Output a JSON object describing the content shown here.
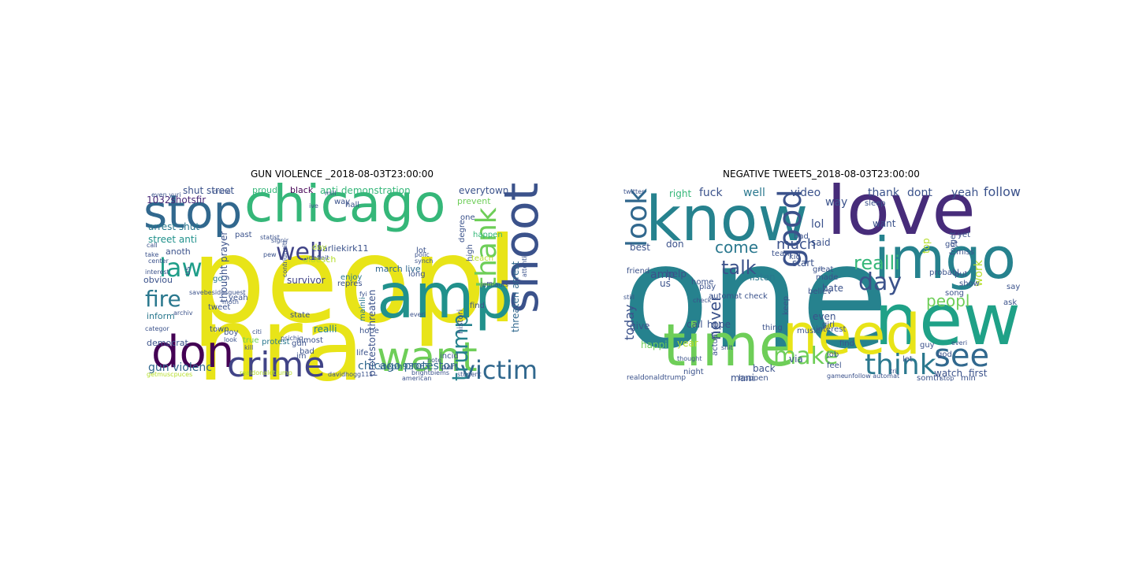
{
  "clouds": [
    {
      "title": "GUN VIOLENCE _2018-08-03T23:00:00",
      "words": [
        {
          "t": "peopl",
          "c": "#e8e418"
        },
        {
          "t": "nra",
          "c": "#e8e418"
        },
        {
          "t": "chicago",
          "c": "#35b779"
        },
        {
          "t": "stop",
          "c": "#31688e"
        },
        {
          "t": "amp",
          "c": "#21918c"
        },
        {
          "t": "shoot",
          "c": "#3b528b"
        },
        {
          "t": "don",
          "c": "#440154"
        },
        {
          "t": "want",
          "c": "#6ece58"
        },
        {
          "t": "crime",
          "c": "#414487"
        },
        {
          "t": "victim",
          "c": "#31688e"
        },
        {
          "t": "trump",
          "c": "#26828e"
        },
        {
          "t": "thank",
          "c": "#6ece58"
        },
        {
          "t": "law",
          "c": "#1f9e89"
        },
        {
          "t": "fire",
          "c": "#2a788e"
        },
        {
          "t": "well",
          "c": "#414487"
        },
        {
          "t": "gun violenc",
          "c": "#31688e"
        },
        {
          "t": "chicago protestor",
          "c": "#31688e"
        },
        {
          "t": "protestor threaten",
          "c": "#3b528b"
        },
        {
          "t": "threaten arrest",
          "c": "#31688e"
        },
        {
          "t": "shut street",
          "c": "#3b528b"
        },
        {
          "t": "arrest shut",
          "c": "#2a788e"
        },
        {
          "t": "street anti",
          "c": "#21918c"
        },
        {
          "t": "anti demonstration",
          "c": "#35b779"
        },
        {
          "t": "1032shotsfir",
          "c": "#482878"
        },
        {
          "t": "everytown",
          "c": "#3b528b"
        },
        {
          "t": "charliekirk11",
          "c": "#3b528b"
        },
        {
          "t": "march live",
          "c": "#31688e"
        },
        {
          "t": "thought prayer",
          "c": "#3b528b"
        },
        {
          "t": "survivor",
          "c": "#414487"
        },
        {
          "t": "dloesch",
          "c": "#b5de2b"
        },
        {
          "t": "steph93065",
          "c": "#31688e"
        },
        {
          "t": "democrat",
          "c": "#3b528b"
        },
        {
          "t": "inform",
          "c": "#2a788e"
        },
        {
          "t": "anoth",
          "c": "#3b528b"
        },
        {
          "t": "obviou",
          "c": "#3b528b"
        },
        {
          "t": "prevent",
          "c": "#6ece58"
        },
        {
          "t": "proud",
          "c": "#35b779"
        },
        {
          "t": "black",
          "c": "#440154"
        },
        {
          "t": "realli",
          "c": "#26828e"
        },
        {
          "t": "life",
          "c": "#3b528b"
        },
        {
          "t": "incid",
          "c": "#3b528b"
        },
        {
          "t": "hope",
          "c": "#3b528b"
        },
        {
          "t": "lot",
          "c": "#3b528b"
        },
        {
          "t": "enjoy",
          "c": "#2a788e"
        },
        {
          "t": "long",
          "c": "#3b528b"
        },
        {
          "t": "town",
          "c": "#3b528b"
        },
        {
          "t": "tweet",
          "c": "#3b528b"
        },
        {
          "t": "protest",
          "c": "#2a788e"
        },
        {
          "t": "gun",
          "c": "#3b528b"
        },
        {
          "t": "almost",
          "c": "#3b528b"
        },
        {
          "t": "state",
          "c": "#3b528b"
        },
        {
          "t": "boy",
          "c": "#3b528b"
        },
        {
          "t": "past",
          "c": "#3b528b"
        },
        {
          "t": "day",
          "c": "#b5de2b"
        },
        {
          "t": "go",
          "c": "#2a788e"
        },
        {
          "t": "find",
          "c": "#3b528b"
        },
        {
          "t": "part",
          "c": "#3b528b"
        },
        {
          "t": "teach",
          "c": "#b5de2b"
        },
        {
          "t": "happen",
          "c": "#35b779"
        },
        {
          "t": "one",
          "c": "#3b528b"
        },
        {
          "t": "hall",
          "c": "#3b528b"
        },
        {
          "t": "repres",
          "c": "#3b528b"
        },
        {
          "t": "yeah",
          "c": "#3b528b"
        },
        {
          "t": "true",
          "c": "#6ece58"
        },
        {
          "t": "bad",
          "c": "#3b528b"
        },
        {
          "t": "im",
          "c": "#3b528b"
        },
        {
          "t": "us",
          "c": "#3b528b"
        },
        {
          "t": "way",
          "c": "#3b528b"
        },
        {
          "t": "high",
          "c": "#3b528b"
        },
        {
          "t": "degre",
          "c": "#3b528b"
        },
        {
          "t": "mainli",
          "c": "#2a788e"
        },
        {
          "t": "histori",
          "c": "#3b528b"
        },
        {
          "t": "kill",
          "c": "#3b528b"
        },
        {
          "t": "citi",
          "c": "#3b528b"
        },
        {
          "t": "realdonaldtrump",
          "c": "#b5de2b"
        },
        {
          "t": "davidhogg111",
          "c": "#3b528b"
        },
        {
          "t": "brightbiems",
          "c": "#3b528b"
        },
        {
          "t": "student",
          "c": "#3b528b"
        },
        {
          "t": "american",
          "c": "#3b528b"
        },
        {
          "t": "getmuscpuces",
          "c": "#b5de2b"
        },
        {
          "t": "definit",
          "c": "#3b528b"
        },
        {
          "t": "contriutrsiti",
          "c": "#3b528b"
        },
        {
          "t": "synch",
          "c": "#3b528b"
        },
        {
          "t": "statist",
          "c": "#3b528b"
        },
        {
          "t": "pew",
          "c": "#3b528b"
        },
        {
          "t": "take",
          "c": "#3b528b"
        },
        {
          "t": "center",
          "c": "#3b528b"
        },
        {
          "t": "call",
          "c": "#3b528b"
        },
        {
          "t": "interest",
          "c": "#3b528b"
        },
        {
          "t": "even yuri",
          "c": "#3b528b"
        },
        {
          "t": "archiv",
          "c": "#3b528b"
        },
        {
          "t": "look",
          "c": "#3b528b"
        },
        {
          "t": "mill",
          "c": "#3b528b"
        },
        {
          "t": "ive",
          "c": "#3b528b"
        },
        {
          "t": "signir",
          "c": "#3b528b"
        },
        {
          "t": "polic",
          "c": "#3b528b"
        },
        {
          "t": "jeffbauts",
          "c": "#3b528b"
        },
        {
          "t": "everi",
          "c": "#3b528b"
        },
        {
          "t": "categor",
          "c": "#3b528b"
        },
        {
          "t": "fyi",
          "c": "#3b528b"
        },
        {
          "t": "note",
          "c": "#3b528b"
        },
        {
          "t": "moth",
          "c": "#3b528b"
        },
        {
          "t": "psichic",
          "c": "#3b528b"
        },
        {
          "t": "attenti",
          "c": "#3b528b"
        },
        {
          "t": "savebesidesguest",
          "c": "#3b528b"
        },
        {
          "t": "crime",
          "c": "#3b528b"
        },
        {
          "t": "thanks",
          "c": "#3b528b"
        }
      ]
    },
    {
      "title": "NEGATIVE TWEETS_2018-08-03T23:00:00",
      "words": [
        {
          "t": "one",
          "c": "#26828e"
        },
        {
          "t": "know",
          "c": "#26828e"
        },
        {
          "t": "love",
          "c": "#472c7a"
        },
        {
          "t": "imgo",
          "c": "#26828e"
        },
        {
          "t": "new",
          "c": "#1fa187"
        },
        {
          "t": "time",
          "c": "#6ece58"
        },
        {
          "t": "need",
          "c": "#e8e418"
        },
        {
          "t": "think",
          "c": "#2a788e"
        },
        {
          "t": "see",
          "c": "#31688e"
        },
        {
          "t": "make",
          "c": "#6ece58"
        },
        {
          "t": "good",
          "c": "#3b528b"
        },
        {
          "t": "look",
          "c": "#31688e"
        },
        {
          "t": "day",
          "c": "#3b528b"
        },
        {
          "t": "talk",
          "c": "#3b528b"
        },
        {
          "t": "come",
          "c": "#2a788e"
        },
        {
          "t": "never",
          "c": "#3b528b"
        },
        {
          "t": "realli",
          "c": "#35b779"
        },
        {
          "t": "much",
          "c": "#3b528b"
        },
        {
          "t": "peopl",
          "c": "#6ece58"
        },
        {
          "t": "amp",
          "c": "#3b528b"
        },
        {
          "t": "lol",
          "c": "#3b528b"
        },
        {
          "t": "fuck",
          "c": "#3b528b"
        },
        {
          "t": "well",
          "c": "#2a788e"
        },
        {
          "t": "video",
          "c": "#3b528b"
        },
        {
          "t": "way",
          "c": "#3b528b"
        },
        {
          "t": "thank",
          "c": "#3b528b"
        },
        {
          "t": "dont",
          "c": "#3b528b"
        },
        {
          "t": "yeah",
          "c": "#3b528b"
        },
        {
          "t": "follow",
          "c": "#3b528b"
        },
        {
          "t": "right",
          "c": "#35b779"
        },
        {
          "t": "best",
          "c": "#3b528b"
        },
        {
          "t": "don",
          "c": "#3b528b"
        },
        {
          "t": "help",
          "c": "#3b528b"
        },
        {
          "t": "us",
          "c": "#3b528b"
        },
        {
          "t": "give",
          "c": "#3b528b"
        },
        {
          "t": "call",
          "c": "#3b528b"
        },
        {
          "t": "hope",
          "c": "#3b528b"
        },
        {
          "t": "today",
          "c": "#3b528b"
        },
        {
          "t": "year",
          "c": "#b5de2b"
        },
        {
          "t": "mani",
          "c": "#3b528b"
        },
        {
          "t": "back",
          "c": "#3b528b"
        },
        {
          "t": "via",
          "c": "#3b528b"
        },
        {
          "t": "even",
          "c": "#3b528b"
        },
        {
          "t": "hate",
          "c": "#3b528b"
        },
        {
          "t": "watch",
          "c": "#3b528b"
        },
        {
          "t": "first",
          "c": "#3b528b"
        },
        {
          "t": "listen",
          "c": "#2a788e"
        },
        {
          "t": "work",
          "c": "#b5de2b"
        },
        {
          "t": "start",
          "c": "#3b528b"
        },
        {
          "t": "said",
          "c": "#3b528b"
        },
        {
          "t": "want",
          "c": "#3b528b"
        },
        {
          "t": "home",
          "c": "#3b528b"
        },
        {
          "t": "top",
          "c": "#b5de2b"
        },
        {
          "t": "keep",
          "c": "#3b528b"
        },
        {
          "t": "thing",
          "c": "#3b528b"
        },
        {
          "t": "play",
          "c": "#3b528b"
        },
        {
          "t": "happi",
          "c": "#6ece58"
        },
        {
          "t": "realdonaldtrump",
          "c": "#3b528b"
        },
        {
          "t": "girl",
          "c": "#3b528b"
        },
        {
          "t": "song",
          "c": "#3b528b"
        },
        {
          "t": "forget",
          "c": "#3b528b"
        },
        {
          "t": "god",
          "c": "#3b528b"
        },
        {
          "t": "feel",
          "c": "#3b528b"
        },
        {
          "t": "job",
          "c": "#3b528b"
        },
        {
          "t": "music",
          "c": "#3b528b"
        },
        {
          "t": "believ",
          "c": "#3b528b"
        },
        {
          "t": "interest",
          "c": "#3b528b"
        },
        {
          "t": "find",
          "c": "#3b528b"
        },
        {
          "t": "guy",
          "c": "#3b528b"
        },
        {
          "t": "let",
          "c": "#3b528b"
        },
        {
          "t": "min",
          "c": "#3b528b"
        },
        {
          "t": "miss",
          "c": "#3b528b"
        },
        {
          "t": "show",
          "c": "#3b528b"
        },
        {
          "t": "great",
          "c": "#3b528b"
        },
        {
          "t": "bad",
          "c": "#3b528b"
        },
        {
          "t": "got",
          "c": "#3b528b"
        },
        {
          "t": "put",
          "c": "#3b528b"
        },
        {
          "t": "friend",
          "c": "#3b528b"
        },
        {
          "t": "night",
          "c": "#3b528b"
        },
        {
          "t": "happen",
          "c": "#3b528b"
        },
        {
          "t": "somth",
          "c": "#3b528b"
        },
        {
          "t": "ask",
          "c": "#3b528b"
        },
        {
          "t": "say",
          "c": "#3b528b"
        },
        {
          "t": "yet",
          "c": "#3b528b"
        },
        {
          "t": "kid",
          "c": "#3b528b"
        },
        {
          "t": "team",
          "c": "#3b528b"
        },
        {
          "t": "made",
          "c": "#3b528b"
        },
        {
          "t": "probabl",
          "c": "#3b528b"
        },
        {
          "t": "sleep",
          "c": "#3b528b"
        },
        {
          "t": "actual",
          "c": "#3b528b"
        },
        {
          "t": "automat check",
          "c": "#3b528b"
        },
        {
          "t": "twitter",
          "c": "#3b528b"
        },
        {
          "t": "check",
          "c": "#3b528b"
        },
        {
          "t": "il",
          "c": "#3b528b"
        },
        {
          "t": "shit",
          "c": "#3b528b"
        },
        {
          "t": "game",
          "c": "#3b528b"
        },
        {
          "t": "still",
          "c": "#3b528b"
        },
        {
          "t": "tri",
          "c": "#3b528b"
        },
        {
          "t": "stop",
          "c": "#3b528b"
        },
        {
          "t": "everi",
          "c": "#3b528b"
        },
        {
          "t": "unfollow automat",
          "c": "#3b528b"
        },
        {
          "t": "thought",
          "c": "#3b528b"
        }
      ]
    }
  ]
}
